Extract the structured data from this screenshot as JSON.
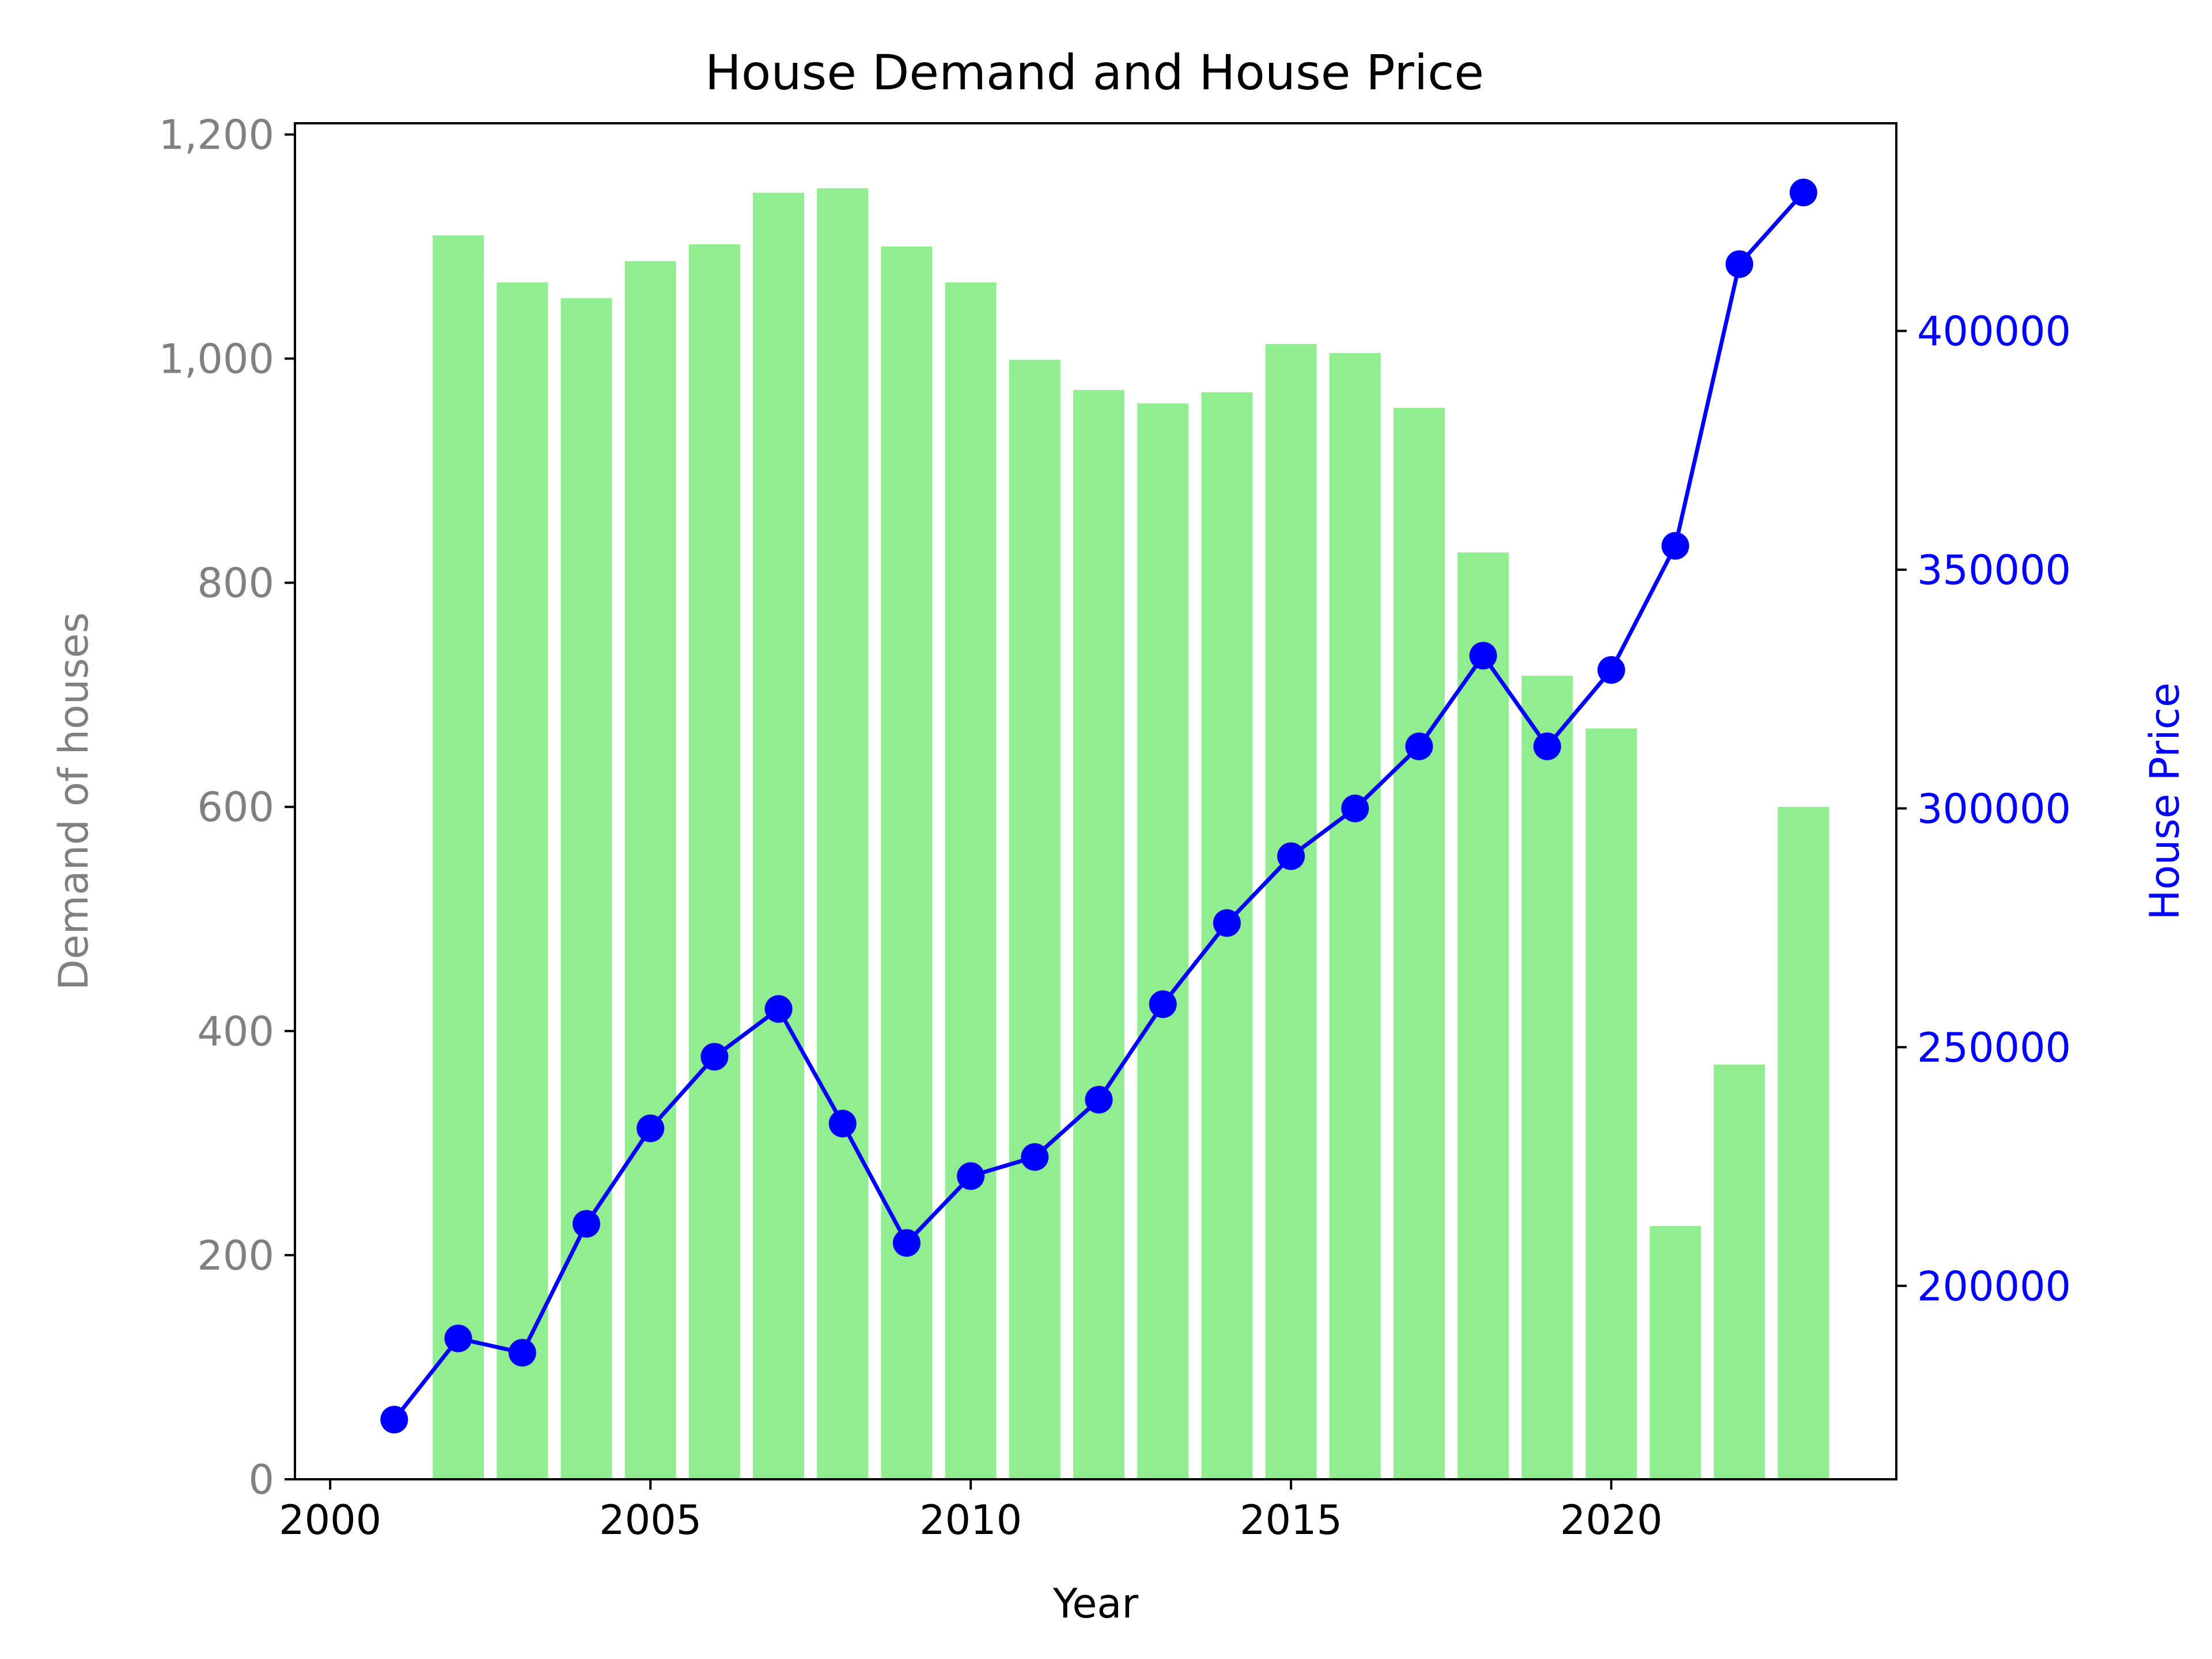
{
  "chart_data": {
    "type": "bar+line",
    "title": "House Demand and House Price",
    "xlabel": "Year",
    "ylabel_left": "Demand of houses",
    "ylabel_right": "House Price",
    "x_ticks": [
      2000,
      2005,
      2010,
      2015,
      2020
    ],
    "y_left_ticks": [
      0,
      200,
      400,
      600,
      800,
      1000,
      1200
    ],
    "y_left_tick_labels": [
      "0",
      "200",
      "400",
      "600",
      "800",
      "1,000",
      "1,200"
    ],
    "y_right_ticks": [
      200000,
      250000,
      300000,
      350000,
      400000
    ],
    "y_right_tick_labels": [
      "200000",
      "250000",
      "300000",
      "350000",
      "400000"
    ],
    "xlim": [
      1999.45,
      2024.45
    ],
    "ylim_left": [
      0,
      1210
    ],
    "ylim_right": [
      159500,
      443500
    ],
    "grid": false,
    "legend": "none",
    "series": [
      {
        "kind": "bar",
        "axis": "left",
        "color": "#90ee90",
        "x": [
          2002,
          2003,
          2004,
          2005,
          2006,
          2007,
          2008,
          2009,
          2010,
          2011,
          2012,
          2013,
          2014,
          2015,
          2016,
          2017,
          2018,
          2019,
          2020,
          2021,
          2022,
          2023
        ],
        "values": [
          1110,
          1068,
          1054,
          1087,
          1102,
          1148,
          1152,
          1100,
          1068,
          999,
          972,
          960,
          970,
          1013,
          1005,
          956,
          827,
          717,
          670,
          226,
          370,
          600
        ]
      },
      {
        "kind": "line",
        "axis": "right",
        "color": "#0000ff",
        "marker": "circle",
        "x": [
          2001,
          2002,
          2003,
          2004,
          2005,
          2006,
          2007,
          2008,
          2009,
          2010,
          2011,
          2012,
          2013,
          2014,
          2015,
          2016,
          2017,
          2018,
          2019,
          2020,
          2021,
          2022,
          2023
        ],
        "values": [
          172000,
          189000,
          186000,
          213000,
          233000,
          248000,
          258000,
          234000,
          209000,
          223000,
          227000,
          239000,
          259000,
          276000,
          290000,
          300000,
          313000,
          332000,
          313000,
          329000,
          355000,
          414000,
          429000
        ]
      }
    ],
    "colors": {
      "left_axis": "#808080",
      "right_axis": "#0000ff",
      "frame": "#000000"
    }
  }
}
